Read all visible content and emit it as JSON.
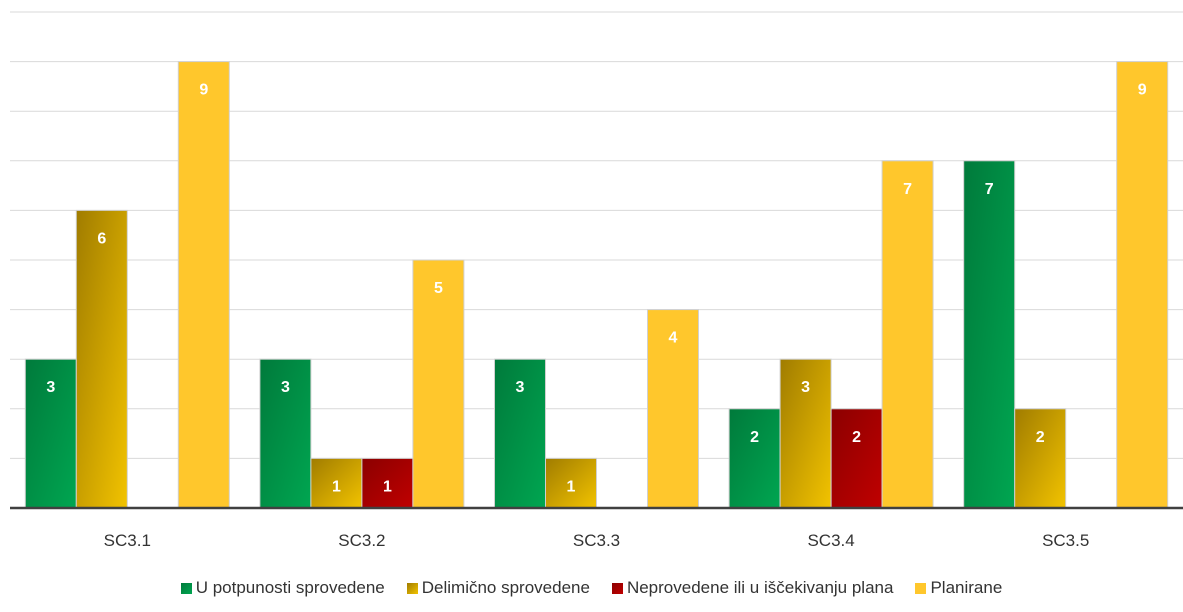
{
  "chart_data": {
    "type": "bar",
    "categories": [
      "SC3.1",
      "SC3.2",
      "SC3.3",
      "SC3.4",
      "SC3.5"
    ],
    "series": [
      {
        "name": "U potpunosti sprovedene",
        "values": [
          3,
          3,
          3,
          2,
          7
        ],
        "color": "#00a651",
        "color_dark": "#007a3b"
      },
      {
        "name": "Delimično sprovedene",
        "values": [
          6,
          1,
          1,
          3,
          2
        ],
        "color": "#f2c300",
        "color_dark": "#a07c00"
      },
      {
        "name": "Neprovedene ili u iščekivanju plana",
        "values": [
          0,
          1,
          0,
          2,
          0
        ],
        "color": "#c00000",
        "color_dark": "#8b0000"
      },
      {
        "name": "Planirane",
        "values": [
          9,
          5,
          4,
          7,
          9
        ],
        "color": "#ffc72c",
        "color_dark": "#ffc72c"
      }
    ],
    "ylim": [
      0,
      10
    ],
    "grid": true,
    "legend_position": "bottom",
    "title": "",
    "xlabel": "",
    "ylabel": ""
  }
}
